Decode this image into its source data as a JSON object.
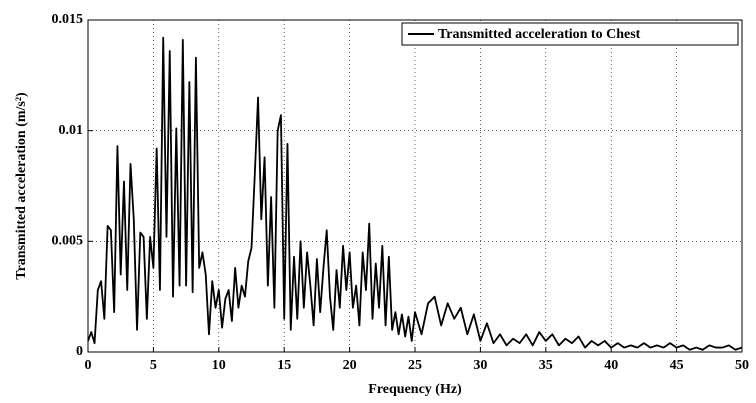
{
  "chart_data": {
    "type": "line",
    "xlabel": "Frequency (Hz)",
    "ylabel": "Transmitted acceleration (m/s²)",
    "xlim": [
      0,
      50
    ],
    "xticks": [
      0,
      5,
      10,
      15,
      20,
      25,
      30,
      35,
      40,
      45,
      50
    ],
    "ylim": [
      0,
      0.015
    ],
    "yticks": [
      0,
      0.005,
      0.01,
      0.015
    ],
    "grid": true,
    "legend": "upper right",
    "x": [
      0,
      0.25,
      0.5,
      0.75,
      1,
      1.25,
      1.5,
      1.75,
      2,
      2.25,
      2.5,
      2.75,
      3,
      3.25,
      3.5,
      3.75,
      4,
      4.25,
      4.5,
      4.75,
      5,
      5.25,
      5.5,
      5.75,
      6,
      6.25,
      6.5,
      6.75,
      7,
      7.25,
      7.5,
      7.75,
      8,
      8.25,
      8.5,
      8.75,
      9,
      9.25,
      9.5,
      9.75,
      10,
      10.25,
      10.5,
      10.75,
      11,
      11.25,
      11.5,
      11.75,
      12,
      12.25,
      12.5,
      12.75,
      13,
      13.25,
      13.5,
      13.75,
      14,
      14.25,
      14.5,
      14.75,
      15,
      15.25,
      15.5,
      15.75,
      16,
      16.25,
      16.5,
      16.75,
      17,
      17.25,
      17.5,
      17.75,
      18,
      18.25,
      18.5,
      18.75,
      19,
      19.25,
      19.5,
      19.75,
      20,
      20.25,
      20.5,
      20.75,
      21,
      21.25,
      21.5,
      21.75,
      22,
      22.25,
      22.5,
      22.75,
      23,
      23.25,
      23.5,
      23.75,
      24,
      24.25,
      24.5,
      24.75,
      25,
      25.5,
      26,
      26.5,
      27,
      27.5,
      28,
      28.5,
      29,
      29.5,
      30,
      30.5,
      31,
      31.5,
      32,
      32.5,
      33,
      33.5,
      34,
      34.5,
      35,
      35.5,
      36,
      36.5,
      37,
      37.5,
      38,
      38.5,
      39,
      39.5,
      40,
      40.5,
      41,
      41.5,
      42,
      42.5,
      43,
      43.5,
      44,
      44.5,
      45,
      45.5,
      46,
      46.5,
      47,
      47.5,
      48,
      48.5,
      49,
      49.5,
      50
    ],
    "series": [
      {
        "name": "Transmitted acceleration to Chest",
        "color": "#000000",
        "values": [
          0.0005,
          0.0009,
          0.0004,
          0.0028,
          0.0032,
          0.0015,
          0.0057,
          0.0055,
          0.0018,
          0.0093,
          0.0035,
          0.0077,
          0.0028,
          0.0085,
          0.006,
          0.001,
          0.0054,
          0.0052,
          0.0015,
          0.0052,
          0.0038,
          0.0092,
          0.0028,
          0.0142,
          0.0052,
          0.0136,
          0.0025,
          0.0101,
          0.003,
          0.0141,
          0.003,
          0.0122,
          0.0027,
          0.0133,
          0.0038,
          0.0045,
          0.0035,
          0.0008,
          0.0032,
          0.002,
          0.0028,
          0.0011,
          0.0024,
          0.0028,
          0.0014,
          0.0038,
          0.002,
          0.003,
          0.0025,
          0.0041,
          0.0047,
          0.008,
          0.0115,
          0.006,
          0.0088,
          0.003,
          0.007,
          0.002,
          0.01,
          0.0107,
          0.0015,
          0.0094,
          0.001,
          0.0043,
          0.0015,
          0.005,
          0.002,
          0.0045,
          0.003,
          0.0012,
          0.0042,
          0.0018,
          0.0038,
          0.0055,
          0.0025,
          0.001,
          0.0037,
          0.002,
          0.0048,
          0.0028,
          0.0045,
          0.002,
          0.003,
          0.0012,
          0.0045,
          0.0028,
          0.0058,
          0.0015,
          0.004,
          0.002,
          0.0048,
          0.0012,
          0.0043,
          0.001,
          0.0018,
          0.0008,
          0.0017,
          0.0007,
          0.0016,
          0.0005,
          0.0018,
          0.0008,
          0.0022,
          0.0025,
          0.0012,
          0.0022,
          0.0015,
          0.002,
          0.0008,
          0.0017,
          0.0005,
          0.0013,
          0.0004,
          0.0008,
          0.0003,
          0.0006,
          0.0004,
          0.0008,
          0.0003,
          0.0009,
          0.0005,
          0.0008,
          0.0003,
          0.0006,
          0.0004,
          0.0007,
          0.0002,
          0.0005,
          0.0003,
          0.0005,
          0.0002,
          0.0004,
          0.0002,
          0.0003,
          0.0002,
          0.0004,
          0.0002,
          0.0003,
          0.0002,
          0.0004,
          0.0002,
          0.0003,
          0.0001,
          0.0002,
          0.0001,
          0.0003,
          0.0002,
          0.0002,
          0.0003,
          0.0001,
          0.0002
        ]
      }
    ]
  }
}
